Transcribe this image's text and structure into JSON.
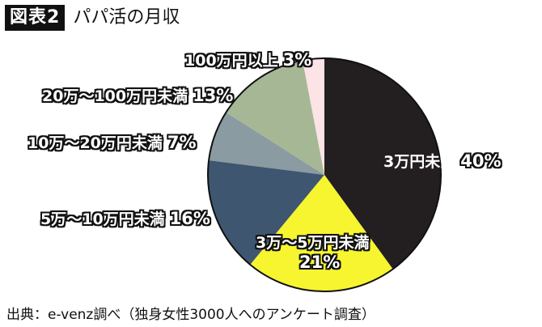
{
  "header": {
    "figure_badge": "図表2",
    "title": "パパ活の月収"
  },
  "source": "出典：e-venz調べ（独身女性3000人へのアンケート調査）",
  "labels": {
    "s0": {
      "name": "3万円未満",
      "pct": "40%"
    },
    "s1": {
      "name": "3万〜5万円未満",
      "pct": "21%"
    },
    "s2": {
      "name": "5万〜10万円未満",
      "pct": "16%"
    },
    "s3": {
      "name": "10万〜20万円未満",
      "pct": "7%"
    },
    "s4": {
      "name": "20万〜100万円未満",
      "pct": "13%"
    },
    "s5": {
      "name": "100万円以上",
      "pct": "3%"
    }
  },
  "chart_data": {
    "type": "pie",
    "title": "パパ活の月収",
    "figure_label": "図表2",
    "categories": [
      "3万円未満",
      "3万〜5万円未満",
      "5万〜10万円未満",
      "10万〜20万円未満",
      "20万〜100万円未満",
      "100万円以上"
    ],
    "values": [
      40,
      21,
      16,
      7,
      13,
      3
    ],
    "unit": "%",
    "colors": [
      "#231f20",
      "#f7f52f",
      "#3f5670",
      "#8a9ba1",
      "#a6b795",
      "#fbe3e6"
    ],
    "start_angle": "12 o'clock",
    "direction": "clockwise",
    "legend": "none (inline labels)",
    "source": "出典：e-venz調べ（独身女性3000人へのアンケート調査）"
  }
}
